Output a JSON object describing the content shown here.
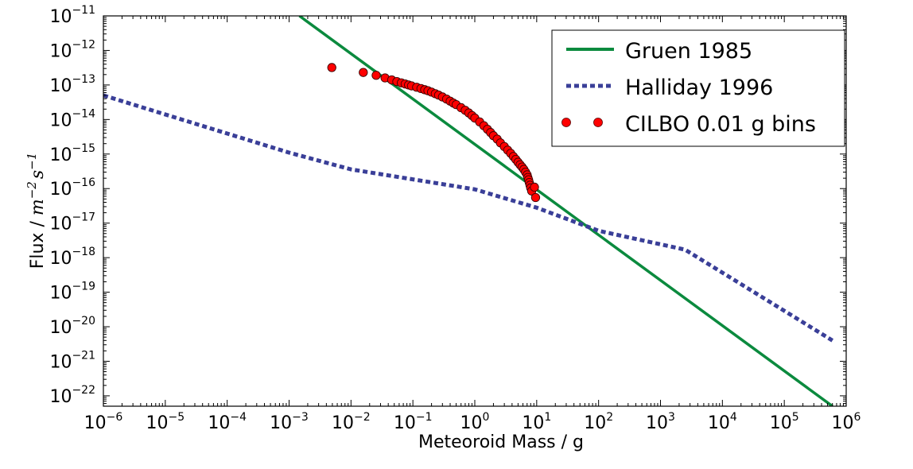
{
  "chart_data": {
    "type": "line",
    "xlabel": "Meteoroid Mass / g",
    "ylabel": {
      "prefix": "Flux / ",
      "m": "m",
      "m_exp": "−2",
      "s": "s",
      "s_exp": "−1"
    },
    "xscale": "log",
    "yscale": "log",
    "xlim": [
      1e-06,
      1000000.0
    ],
    "ylim": [
      5e-23,
      1e-11
    ],
    "x_ticks": [
      {
        "base": "10",
        "exp": "−6"
      },
      {
        "base": "10",
        "exp": "−5"
      },
      {
        "base": "10",
        "exp": "−4"
      },
      {
        "base": "10",
        "exp": "−3"
      },
      {
        "base": "10",
        "exp": "−2"
      },
      {
        "base": "10",
        "exp": "−1"
      },
      {
        "base": "10",
        "exp": "0"
      },
      {
        "base": "10",
        "exp": "1"
      },
      {
        "base": "10",
        "exp": "2"
      },
      {
        "base": "10",
        "exp": "3"
      },
      {
        "base": "10",
        "exp": "4"
      },
      {
        "base": "10",
        "exp": "5"
      },
      {
        "base": "10",
        "exp": "6"
      }
    ],
    "y_ticks": [
      {
        "base": "10",
        "exp": "−22"
      },
      {
        "base": "10",
        "exp": "−21"
      },
      {
        "base": "10",
        "exp": "−20"
      },
      {
        "base": "10",
        "exp": "−19"
      },
      {
        "base": "10",
        "exp": "−18"
      },
      {
        "base": "10",
        "exp": "−17"
      },
      {
        "base": "10",
        "exp": "−16"
      },
      {
        "base": "10",
        "exp": "−15"
      },
      {
        "base": "10",
        "exp": "−14"
      },
      {
        "base": "10",
        "exp": "−13"
      },
      {
        "base": "10",
        "exp": "−12"
      },
      {
        "base": "10",
        "exp": "−11"
      }
    ],
    "grid": false,
    "legend_position": "top-right",
    "series": [
      {
        "name": "Gruen 1985",
        "style": "solid-line",
        "color": "#0b8a3e",
        "x": [
          0.00147,
          600000
        ],
        "y": [
          1e-11,
          5e-23
        ]
      },
      {
        "name": "Halliday 1996",
        "style": "dashed-line",
        "color": "#3a3f98",
        "x": [
          1e-06,
          0.001,
          0.01,
          1,
          10,
          100,
          2500,
          600000
        ],
        "y": [
          5e-14,
          1.1e-15,
          3.6e-16,
          9.5e-17,
          2.8e-17,
          6e-18,
          1.7e-18,
          4e-21
        ]
      },
      {
        "name": "CILBO 0.01 g bins",
        "style": "markers",
        "color": "#ff0000",
        "x": [
          0.0049,
          0.0158,
          0.0255,
          0.0355,
          0.0455,
          0.055,
          0.065,
          0.075,
          0.085,
          0.095,
          0.115,
          0.135,
          0.155,
          0.175,
          0.2,
          0.23,
          0.26,
          0.3,
          0.35,
          0.4,
          0.45,
          0.5,
          0.6,
          0.7,
          0.8,
          0.9,
          1.0,
          1.2,
          1.4,
          1.6,
          1.8,
          2.0,
          2.3,
          2.6,
          3.0,
          3.4,
          3.8,
          4.2,
          4.6,
          5.0,
          5.4,
          5.8,
          6.2,
          6.6,
          7.0,
          7.2,
          7.4,
          7.6,
          7.8,
          8.0,
          8.3,
          9.2,
          9.6
        ],
        "y": [
          3.2e-13,
          2.3e-13,
          1.9e-13,
          1.6e-13,
          1.4e-13,
          1.25e-13,
          1.15e-13,
          1.07e-13,
          1e-13,
          9.4e-14,
          8.6e-14,
          7.9e-14,
          7.3e-14,
          6.8e-14,
          6.2e-14,
          5.6e-14,
          5.1e-14,
          4.5e-14,
          3.9e-14,
          3.4e-14,
          3e-14,
          2.7e-14,
          2.2e-14,
          1.85e-14,
          1.55e-14,
          1.3e-14,
          1.1e-14,
          8.5e-15,
          6.6e-15,
          5.2e-15,
          4.2e-15,
          3.4e-15,
          2.7e-15,
          2.1e-15,
          1.65e-15,
          1.3e-15,
          1.05e-15,
          8.5e-16,
          7e-16,
          5.8e-16,
          4.9e-16,
          4.2e-16,
          3.6e-16,
          3e-16,
          2.5e-16,
          2.1e-16,
          1.8e-16,
          1.5e-16,
          1.25e-16,
          1.05e-16,
          8.5e-17,
          1.1e-16,
          5.5e-17
        ]
      }
    ]
  }
}
